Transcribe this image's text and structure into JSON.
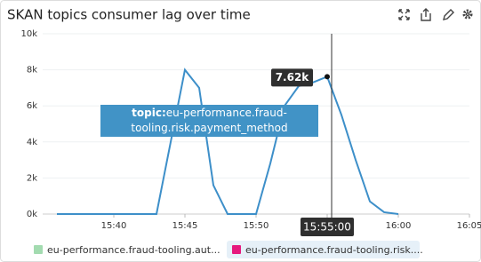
{
  "chart_data": {
    "type": "line",
    "title": "SKAN topics consumer lag over time",
    "x": [
      "15:36",
      "15:37",
      "15:38",
      "15:39",
      "15:40",
      "15:41",
      "15:42",
      "15:43",
      "15:44",
      "15:45",
      "15:46",
      "15:47",
      "15:48",
      "15:49",
      "15:50",
      "15:51",
      "15:52",
      "15:53",
      "15:54",
      "15:55",
      "15:56",
      "15:57",
      "15:58",
      "15:59",
      "16:00"
    ],
    "series": [
      {
        "name": "eu-performance.fraud-tooling.risk....",
        "color": "#3d8fc9",
        "values": [
          0,
          0,
          0,
          0,
          0,
          0,
          0,
          0,
          4000,
          8000,
          7000,
          1600,
          0,
          0,
          0,
          2800,
          6000,
          7100,
          7300,
          7620,
          5500,
          3000,
          700,
          100,
          0
        ]
      }
    ],
    "legend": [
      {
        "label": "eu-performance.fraud-tooling.aut...",
        "color": "#a3dbb0"
      },
      {
        "label": "eu-performance.fraud-tooling.risk....",
        "color": "#e6197e"
      }
    ],
    "xlim": [
      "15:35",
      "16:05"
    ],
    "xticks": [
      "15:40",
      "15:45",
      "15:50",
      "15:55",
      "16:00",
      "16:05"
    ],
    "ylim": [
      0,
      10000
    ],
    "yticks": [
      {
        "value": 0,
        "label": "0k"
      },
      {
        "value": 2000,
        "label": "2k"
      },
      {
        "value": 4000,
        "label": "4k"
      },
      {
        "value": 6000,
        "label": "6k"
      },
      {
        "value": 8000,
        "label": "8k"
      },
      {
        "value": 10000,
        "label": "10k"
      }
    ],
    "grid": true,
    "hover": {
      "time_label": "15:55:00",
      "value_label": "7.62k",
      "key": "topic:",
      "text": "eu-performance.fraud-tooling.risk.payment_method"
    }
  }
}
